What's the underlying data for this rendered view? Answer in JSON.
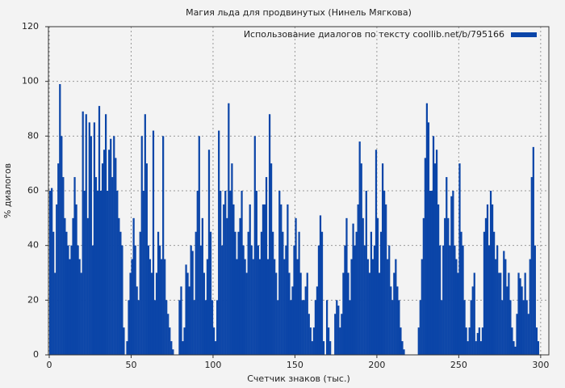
{
  "chart_data": {
    "type": "bar",
    "title": "Магия льда для продвинутых (Нинель Мягкова)",
    "x_label": "Счетчик знаков (тыс.)",
    "y_label": "% диалогов",
    "xlim": [
      0,
      305
    ],
    "xticks": [
      0,
      50,
      100,
      150,
      200,
      250,
      300
    ],
    "ylim": [
      0,
      120
    ],
    "yticks": [
      0,
      20,
      40,
      60,
      80,
      100,
      120
    ],
    "grid": true,
    "legend": "upper-right",
    "x": [
      0,
      1,
      2,
      3,
      4,
      5,
      6,
      7,
      8,
      9,
      10,
      11,
      12,
      13,
      14,
      15,
      16,
      17,
      18,
      19,
      20,
      21,
      22,
      23,
      24,
      25,
      26,
      27,
      28,
      29,
      30,
      31,
      32,
      33,
      34,
      35,
      36,
      37,
      38,
      39,
      40,
      41,
      42,
      43,
      44,
      45,
      46,
      47,
      48,
      49,
      50,
      51,
      52,
      53,
      54,
      55,
      56,
      57,
      58,
      59,
      60,
      61,
      62,
      63,
      64,
      65,
      66,
      67,
      68,
      69,
      70,
      71,
      72,
      73,
      74,
      75,
      76,
      77,
      78,
      79,
      80,
      81,
      82,
      83,
      84,
      85,
      86,
      87,
      88,
      89,
      90,
      91,
      92,
      93,
      94,
      95,
      96,
      97,
      98,
      99,
      100,
      101,
      102,
      103,
      104,
      105,
      106,
      107,
      108,
      109,
      110,
      111,
      112,
      113,
      114,
      115,
      116,
      117,
      118,
      119,
      120,
      121,
      122,
      123,
      124,
      125,
      126,
      127,
      128,
      129,
      130,
      131,
      132,
      133,
      134,
      135,
      136,
      137,
      138,
      139,
      140,
      141,
      142,
      143,
      144,
      145,
      146,
      147,
      148,
      149,
      150,
      151,
      152,
      153,
      154,
      155,
      156,
      157,
      158,
      159,
      160,
      161,
      162,
      163,
      164,
      165,
      166,
      167,
      168,
      169,
      170,
      171,
      172,
      173,
      174,
      175,
      176,
      177,
      178,
      179,
      180,
      181,
      182,
      183,
      184,
      185,
      186,
      187,
      188,
      189,
      190,
      191,
      192,
      193,
      194,
      195,
      196,
      197,
      198,
      199,
      200,
      201,
      202,
      203,
      204,
      205,
      206,
      207,
      208,
      209,
      210,
      211,
      212,
      213,
      214,
      215,
      216,
      217,
      218,
      219,
      220,
      221,
      222,
      223,
      224,
      225,
      226,
      227,
      228,
      229,
      230,
      231,
      232,
      233,
      234,
      235,
      236,
      237,
      238,
      239,
      240,
      241,
      242,
      243,
      244,
      245,
      246,
      247,
      248,
      249,
      250,
      251,
      252,
      253,
      254,
      255,
      256,
      257,
      258,
      259,
      260,
      261,
      262,
      263,
      264,
      265,
      266,
      267,
      268,
      269,
      270,
      271,
      272,
      273,
      274,
      275,
      276,
      277,
      278,
      279,
      280,
      281,
      282,
      283,
      284,
      285,
      286,
      287,
      288,
      289,
      290,
      291,
      292,
      293,
      294,
      295,
      296,
      297,
      298,
      299
    ],
    "series": [
      {
        "name": "Использование диалогов по тексту coollib.net/b/795166",
        "color": "#0b45a8",
        "values": [
          60,
          61,
          45,
          30,
          55,
          70,
          99,
          80,
          65,
          50,
          45,
          40,
          35,
          40,
          50,
          65,
          55,
          40,
          35,
          30,
          89,
          60,
          88,
          50,
          85,
          80,
          40,
          85,
          65,
          60,
          91,
          60,
          70,
          75,
          88,
          60,
          75,
          79,
          65,
          80,
          72,
          60,
          50,
          45,
          40,
          10,
          0,
          5,
          20,
          30,
          35,
          50,
          40,
          25,
          20,
          45,
          80,
          60,
          88,
          70,
          40,
          35,
          30,
          82,
          20,
          30,
          45,
          40,
          35,
          80,
          35,
          20,
          15,
          10,
          5,
          2,
          0,
          0,
          0,
          20,
          25,
          5,
          10,
          33,
          30,
          25,
          40,
          38,
          20,
          45,
          60,
          80,
          40,
          50,
          30,
          20,
          35,
          75,
          45,
          20,
          10,
          5,
          20,
          82,
          60,
          40,
          55,
          60,
          50,
          92,
          60,
          70,
          55,
          45,
          35,
          45,
          50,
          60,
          40,
          35,
          30,
          45,
          55,
          40,
          35,
          80,
          60,
          40,
          35,
          45,
          55,
          55,
          65,
          35,
          88,
          70,
          45,
          35,
          30,
          20,
          60,
          55,
          45,
          35,
          40,
          55,
          30,
          20,
          25,
          40,
          50,
          35,
          45,
          30,
          20,
          20,
          25,
          30,
          15,
          10,
          5,
          10,
          20,
          25,
          40,
          51,
          45,
          5,
          0,
          20,
          10,
          5,
          0,
          0,
          15,
          20,
          18,
          10,
          15,
          30,
          40,
          50,
          30,
          20,
          35,
          48,
          40,
          45,
          55,
          78,
          70,
          50,
          40,
          60,
          35,
          30,
          45,
          35,
          40,
          75,
          50,
          30,
          45,
          70,
          60,
          55,
          35,
          40,
          25,
          20,
          30,
          35,
          25,
          20,
          10,
          5,
          2,
          0,
          0,
          0,
          0,
          0,
          0,
          0,
          0,
          10,
          20,
          35,
          50,
          72,
          92,
          85,
          60,
          60,
          80,
          70,
          75,
          55,
          40,
          20,
          40,
          50,
          65,
          50,
          40,
          58,
          60,
          40,
          35,
          30,
          70,
          45,
          40,
          20,
          10,
          5,
          10,
          20,
          25,
          30,
          5,
          8,
          10,
          5,
          10,
          45,
          50,
          55,
          40,
          60,
          55,
          45,
          35,
          40,
          30,
          30,
          20,
          38,
          35,
          25,
          30,
          20,
          10,
          5,
          3,
          15,
          30,
          28,
          25,
          20,
          30,
          20,
          15,
          35,
          65,
          76,
          40,
          10,
          5,
          0
        ]
      }
    ]
  }
}
